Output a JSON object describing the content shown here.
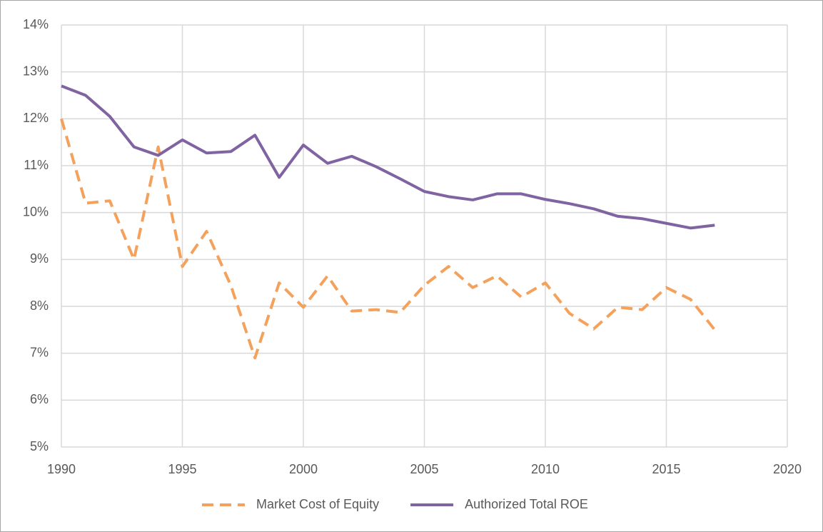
{
  "chart_data": {
    "type": "line",
    "x": [
      1990,
      1991,
      1992,
      1993,
      1994,
      1995,
      1996,
      1997,
      1998,
      1999,
      2000,
      2001,
      2002,
      2003,
      2004,
      2005,
      2006,
      2007,
      2008,
      2009,
      2010,
      2011,
      2012,
      2013,
      2014,
      2015,
      2016,
      2017
    ],
    "series": [
      {
        "name": "Market Cost of Equity",
        "color": "#f4a15c",
        "dash": true,
        "values": [
          12.0,
          10.2,
          10.25,
          9.0,
          11.4,
          8.85,
          9.6,
          8.45,
          6.9,
          8.5,
          7.98,
          8.65,
          7.9,
          7.93,
          7.87,
          8.45,
          8.85,
          8.4,
          8.65,
          8.2,
          8.5,
          7.85,
          7.52,
          7.98,
          7.93,
          8.4,
          8.15,
          7.5
        ]
      },
      {
        "name": "Authorized Total ROE",
        "color": "#8064a2",
        "dash": false,
        "values": [
          12.7,
          12.5,
          12.05,
          11.4,
          11.22,
          11.55,
          11.27,
          11.3,
          11.65,
          10.75,
          11.44,
          11.05,
          11.2,
          10.98,
          10.72,
          10.45,
          10.34,
          10.27,
          10.4,
          10.4,
          10.28,
          10.19,
          10.08,
          9.92,
          9.87,
          9.77,
          9.67,
          9.73
        ]
      }
    ],
    "xlim": [
      1990,
      2020
    ],
    "xticks": [
      1990,
      1995,
      2000,
      2005,
      2010,
      2015,
      2020
    ],
    "ylim": [
      5,
      14
    ],
    "yticks": [
      {
        "value": 5,
        "label": "5%"
      },
      {
        "value": 6,
        "label": "6%"
      },
      {
        "value": 7,
        "label": "7%"
      },
      {
        "value": 8,
        "label": "8%"
      },
      {
        "value": 9,
        "label": "9%"
      },
      {
        "value": 10,
        "label": "10%"
      },
      {
        "value": 11,
        "label": "11%"
      },
      {
        "value": 12,
        "label": "12%"
      },
      {
        "value": 13,
        "label": "13%"
      },
      {
        "value": 14,
        "label": "14%"
      }
    ],
    "grid": true,
    "legend": "bottom"
  }
}
